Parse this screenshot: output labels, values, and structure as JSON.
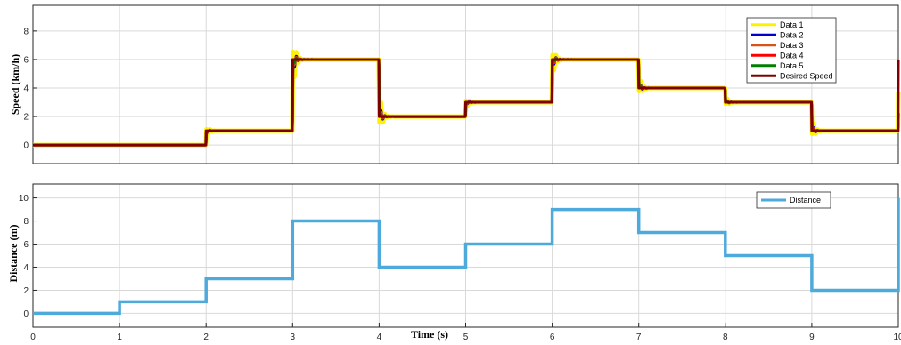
{
  "chart_data": [
    {
      "type": "line",
      "ylabel": "Speed (km/h)",
      "xlim": [
        0,
        10
      ],
      "ylim": [
        -1.3,
        9.8
      ],
      "xticks": [
        0,
        1,
        2,
        3,
        4,
        5,
        6,
        7,
        8,
        9,
        10
      ],
      "yticks": [
        0,
        2,
        4,
        6,
        8
      ],
      "grid": true,
      "legend_position": "top-right",
      "setpoints": [
        {
          "t": 0,
          "v": 0
        },
        {
          "t": 2,
          "v": 1
        },
        {
          "t": 3,
          "v": 6
        },
        {
          "t": 4,
          "v": 2
        },
        {
          "t": 5,
          "v": 3
        },
        {
          "t": 6,
          "v": 6
        },
        {
          "t": 7,
          "v": 4
        },
        {
          "t": 8,
          "v": 3
        },
        {
          "t": 9,
          "v": 1
        },
        {
          "t": 10,
          "v": 6
        }
      ],
      "series": [
        {
          "name": "Data 1",
          "color": "#FFF200",
          "overshoot_scale": 1.0,
          "width": 5
        },
        {
          "name": "Data 2",
          "color": "#0000CC",
          "overshoot_scale": 0.45,
          "width": 3
        },
        {
          "name": "Data 3",
          "color": "#D95319",
          "overshoot_scale": 0.3,
          "width": 3
        },
        {
          "name": "Data 4",
          "color": "#FF0000",
          "overshoot_scale": 0.22,
          "width": 2.5
        },
        {
          "name": "Data 5",
          "color": "#007F00",
          "overshoot_scale": 0.15,
          "width": 2.5
        },
        {
          "name": "Desired Speed",
          "color": "#7F0000",
          "overshoot_scale": 0.0,
          "width": 3
        }
      ]
    },
    {
      "type": "line",
      "xlabel": "Time (s)",
      "ylabel": "Distance (m)",
      "xlim": [
        0,
        10
      ],
      "ylim": [
        -1.2,
        11.2
      ],
      "xticks": [
        0,
        1,
        2,
        3,
        4,
        5,
        6,
        7,
        8,
        9,
        10
      ],
      "yticks": [
        0,
        2,
        4,
        6,
        8,
        10
      ],
      "grid": true,
      "legend_position": "top-right",
      "series": [
        {
          "name": "Distance",
          "color": "#4DAADB",
          "steps": [
            {
              "t": 0,
              "v": 0
            },
            {
              "t": 1,
              "v": 1
            },
            {
              "t": 2,
              "v": 3
            },
            {
              "t": 3,
              "v": 8
            },
            {
              "t": 4,
              "v": 4
            },
            {
              "t": 5,
              "v": 6
            },
            {
              "t": 6,
              "v": 9
            },
            {
              "t": 7,
              "v": 7
            },
            {
              "t": 8,
              "v": 5
            },
            {
              "t": 9,
              "v": 2
            },
            {
              "t": 10,
              "v": 10
            }
          ]
        }
      ]
    }
  ]
}
